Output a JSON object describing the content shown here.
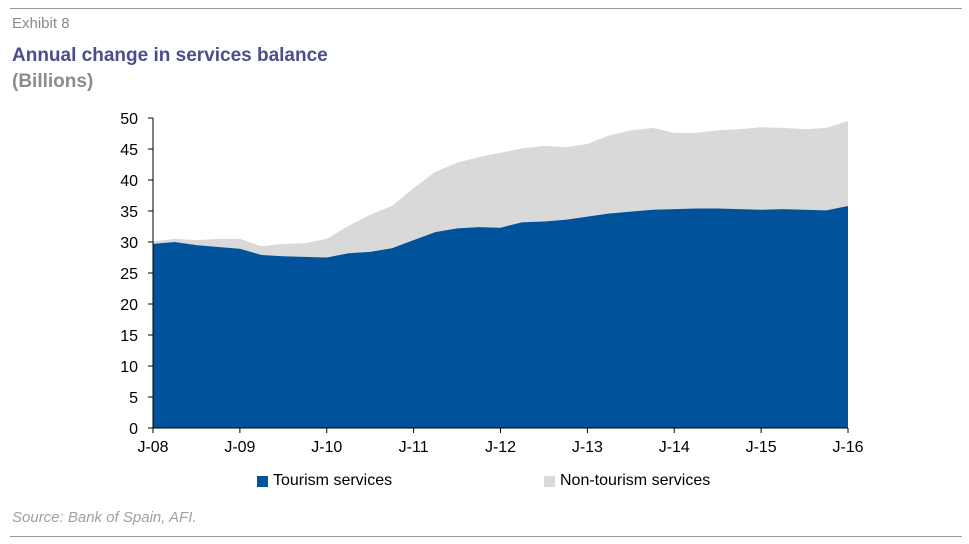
{
  "header": {
    "exhibit": "Exhibit 8",
    "title": "Annual change in services balance",
    "subtitle": "(Billions)"
  },
  "footer": {
    "source": "Source: Bank of Spain, AFI."
  },
  "colors": {
    "tourism": "#00529b",
    "non_tourism": "#d9d9d9",
    "axis": "#000000"
  },
  "chart_data": {
    "type": "area",
    "stacked": true,
    "x_ticks": [
      "J-08",
      "J-09",
      "J-10",
      "J-11",
      "J-12",
      "J-13",
      "J-14",
      "J-15",
      "J-16"
    ],
    "ylim": [
      0,
      50
    ],
    "y_ticks": [
      0,
      5,
      10,
      15,
      20,
      25,
      30,
      35,
      40,
      45,
      50
    ],
    "grid": false,
    "legend_position": "bottom",
    "x": [
      "2008-06",
      "2008-09",
      "2008-12",
      "2009-03",
      "2009-06",
      "2009-09",
      "2009-12",
      "2010-03",
      "2010-06",
      "2010-09",
      "2010-12",
      "2011-03",
      "2011-06",
      "2011-09",
      "2011-12",
      "2012-03",
      "2012-06",
      "2012-09",
      "2012-12",
      "2013-03",
      "2013-06",
      "2013-09",
      "2013-12",
      "2014-03",
      "2014-06",
      "2014-09",
      "2014-12",
      "2015-03",
      "2015-06",
      "2015-09",
      "2015-12",
      "2016-03",
      "2016-06"
    ],
    "series": [
      {
        "name": "Tourism services",
        "values": [
          29.7,
          30.0,
          29.5,
          29.2,
          28.9,
          27.9,
          27.7,
          27.6,
          27.5,
          28.2,
          28.4,
          29.0,
          30.3,
          31.6,
          32.2,
          32.4,
          32.3,
          33.2,
          33.3,
          33.6,
          34.1,
          34.6,
          34.9,
          35.2,
          35.3,
          35.4,
          35.4,
          35.3,
          35.2,
          35.3,
          35.2,
          35.1,
          35.8
        ]
      },
      {
        "name": "Non-tourism services",
        "values": [
          0.4,
          0.5,
          0.8,
          1.3,
          1.6,
          1.4,
          2.0,
          2.2,
          3.0,
          4.4,
          6.0,
          6.8,
          8.4,
          9.7,
          10.6,
          11.3,
          12.1,
          11.9,
          12.2,
          11.7,
          11.7,
          12.6,
          13.1,
          13.2,
          12.3,
          12.2,
          12.6,
          12.9,
          13.3,
          13.1,
          13.0,
          13.3,
          13.7
        ]
      }
    ]
  }
}
